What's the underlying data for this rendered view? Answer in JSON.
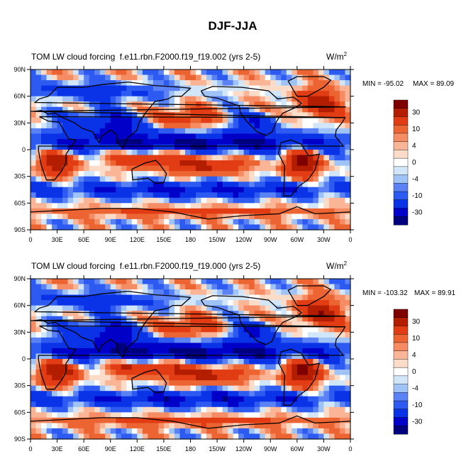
{
  "chart_data": {
    "type": "heatmap",
    "title": "DJF-JJA",
    "colors": [
      "#00007f",
      "#0000c8",
      "#0a32e6",
      "#2d5af0",
      "#5a82f5",
      "#a0c3f5",
      "#d2e6fa",
      "#ffffff",
      "#fadcc8",
      "#fab496",
      "#f58c64",
      "#eb6432",
      "#e13c14",
      "#b41e00",
      "#7f0000"
    ],
    "colorbar_labels": [
      "30",
      "10",
      "4",
      "0",
      "-4",
      "-10",
      "-30"
    ],
    "x_ticks": [
      "0",
      "30E",
      "60E",
      "90E",
      "120E",
      "150E",
      "180",
      "150W",
      "120W",
      "90W",
      "60W",
      "30W",
      "0"
    ],
    "y_ticks": [
      "90N",
      "60N",
      "30N",
      "0",
      "30S",
      "60S",
      "90S"
    ],
    "panels": [
      {
        "left_title": "TOM LW cloud forcing",
        "center_title": "f.e11.rbn.F2000.f19_f19.002 (yrs 2-5)",
        "units_base": "W/m",
        "units_exp": "2",
        "min_label": "MIN = -95.02",
        "max_label": "MAX =  89.09",
        "field_sign_scale": 1.0
      },
      {
        "left_title": "TOM LW cloud forcing",
        "center_title": "f.e11.rbn.F2000.f19_f19.000 (yrs 2-5)",
        "units_base": "W/m",
        "units_exp": "2",
        "min_label": "MIN = -103.32",
        "max_label": "MAX =  89.91",
        "field_sign_scale": 1.04
      }
    ]
  }
}
